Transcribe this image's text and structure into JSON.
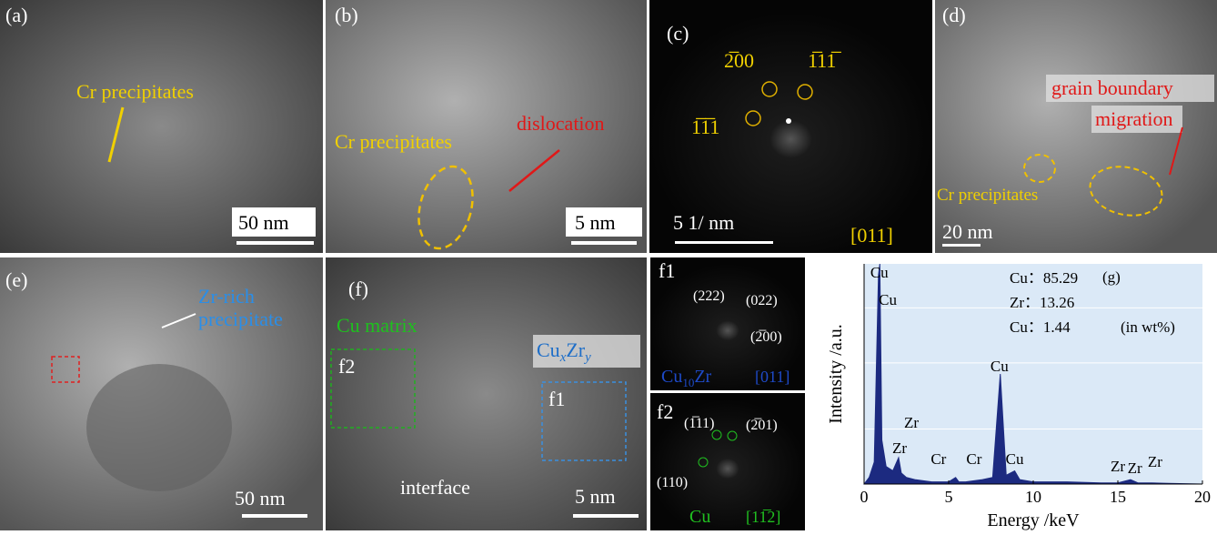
{
  "panels": {
    "a": {
      "label": "(a)",
      "note": "Cr precipitates",
      "scale_bar": "50 nm"
    },
    "b": {
      "label": "(b)",
      "note": "Cr precipitates",
      "defect": "dislocation",
      "scale_bar": "5 nm"
    },
    "c": {
      "label": "(c)",
      "spots": [
        "2̅00",
        "1̅11̅",
        "1̅1̅1"
      ],
      "scale_bar": "5 1/ nm",
      "zone": "[011]"
    },
    "d": {
      "label": "(d)",
      "note_lines": [
        "grain boundary",
        "migration"
      ],
      "precipitates": "Cr precipitates",
      "scale_bar": "20 nm"
    },
    "e": {
      "label": "(e)",
      "note_lines": [
        "Zr-rich",
        "precipitate"
      ],
      "scale_bar": "50 nm"
    },
    "f": {
      "label": "(f)",
      "matrix": "Cu matrix",
      "phase": [
        "Cu",
        "x",
        "Zr",
        "y"
      ],
      "box2": "f2",
      "box1": "f1",
      "interface": "interface",
      "scale_bar": "5 nm"
    },
    "f1": {
      "label": "f1",
      "spots": [
        "(222)",
        "(022)",
        "(2̅00)"
      ],
      "phase": [
        "Cu",
        "10",
        "Zr"
      ],
      "zone": "[011]"
    },
    "f2": {
      "label": "f2",
      "spots": [
        "(1̅11)",
        "(2̅01)",
        "(110)"
      ],
      "phase": "Cu",
      "zone": "[11̅2]"
    }
  },
  "chart_data": {
    "type": "area",
    "panel_label": "(g)",
    "x_label": "Energy /keV",
    "y_label": "Intensity /a.u.",
    "composition": [
      "Cu：85.29",
      "Zr：13.26",
      "Cu：1.44",
      "(in wt%)"
    ],
    "xlim": [
      0,
      20
    ],
    "ylim": [
      0,
      100
    ],
    "xticks": [
      0,
      5,
      10,
      15,
      20
    ],
    "series": [
      {
        "color": "#1c2a80",
        "x": [
          0,
          0.3,
          0.6,
          0.85,
          0.93,
          1.05,
          1.3,
          1.7,
          2.04,
          2.2,
          2.5,
          3,
          4,
          5.0,
          5.41,
          5.6,
          6,
          7,
          7.6,
          8.05,
          8.4,
          8.9,
          9.2,
          10,
          12,
          14,
          15.0,
          15.75,
          16.2,
          17,
          18,
          20
        ],
        "values": [
          0,
          3,
          10,
          95,
          100,
          20,
          8,
          6,
          12,
          5,
          3,
          2,
          1,
          1,
          3,
          1,
          1,
          2,
          3,
          50,
          4,
          6,
          2,
          1,
          1,
          0.5,
          0.5,
          2,
          0.5,
          0.5,
          0.3,
          0
        ]
      }
    ],
    "annotations": [
      {
        "text": "Cu",
        "x": 0.9
      },
      {
        "text": "Cu",
        "x": 1.4
      },
      {
        "text": "Zr",
        "x": 2.8
      },
      {
        "text": "Zr",
        "x": 2.1
      },
      {
        "text": "Cr",
        "x": 4.4
      },
      {
        "text": "Cr",
        "x": 6.5
      },
      {
        "text": "Cu",
        "x": 8.0
      },
      {
        "text": "Cu",
        "x": 8.9
      },
      {
        "text": "Zr",
        "x": 15.0
      },
      {
        "text": "Zr",
        "x": 16.0
      },
      {
        "text": "Zr",
        "x": 17.2
      }
    ]
  }
}
